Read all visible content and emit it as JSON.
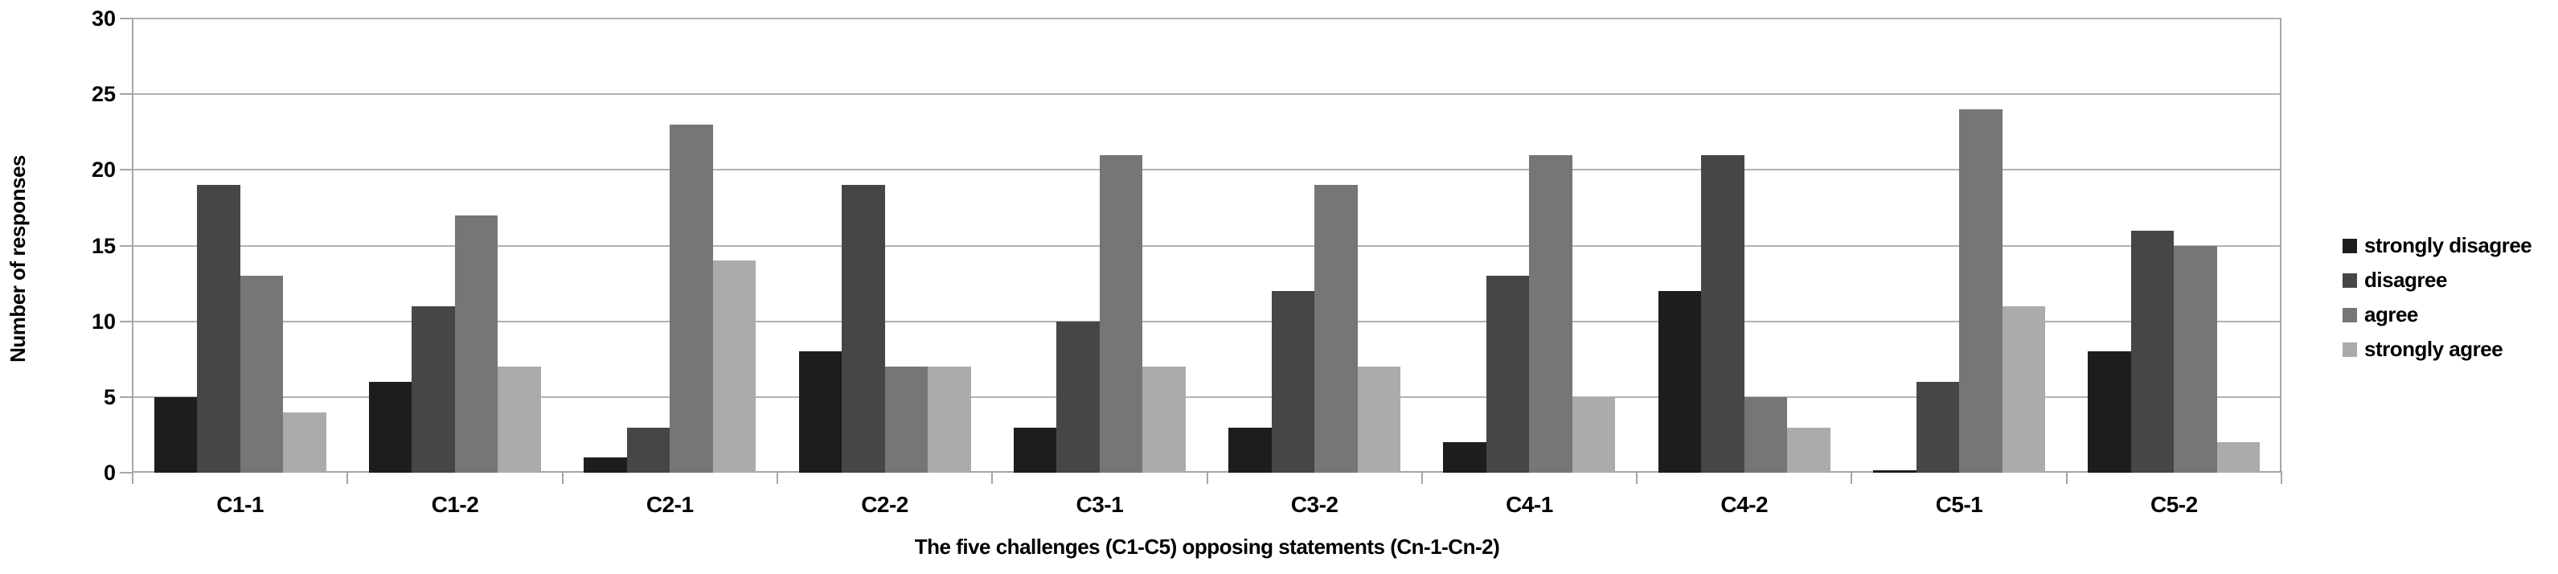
{
  "chart_data": {
    "type": "bar",
    "categories": [
      "C1-1",
      "C1-2",
      "C2-1",
      "C2-2",
      "C3-1",
      "C3-2",
      "C4-1",
      "C4-2",
      "C5-1",
      "C5-2"
    ],
    "series": [
      {
        "name": "strongly disagree",
        "color": "#1d1d1d",
        "values": [
          5,
          6,
          1,
          8,
          3,
          3,
          2,
          12,
          0,
          8
        ]
      },
      {
        "name": "disagree",
        "color": "#464646",
        "values": [
          19,
          11,
          3,
          19,
          10,
          12,
          13,
          21,
          6,
          16
        ]
      },
      {
        "name": "agree",
        "color": "#767676",
        "values": [
          13,
          17,
          23,
          7,
          21,
          19,
          21,
          5,
          24,
          15
        ]
      },
      {
        "name": "strongly agree",
        "color": "#ababab",
        "values": [
          4,
          7,
          14,
          7,
          7,
          7,
          5,
          3,
          11,
          2
        ]
      }
    ],
    "title": "",
    "xlabel": "The five challenges (C1-C5) opposing statements (Cn-1-Cn-2)",
    "ylabel": "Number of responses",
    "ylim": [
      0,
      30
    ],
    "yticks": [
      0,
      5,
      10,
      15,
      20,
      25,
      30
    ],
    "grid": true,
    "legend_position": "right",
    "colors": {
      "background": "#ffffff",
      "gridline": "#b2b2b2",
      "axis": "#a6a6a6",
      "text": "#000000"
    }
  }
}
